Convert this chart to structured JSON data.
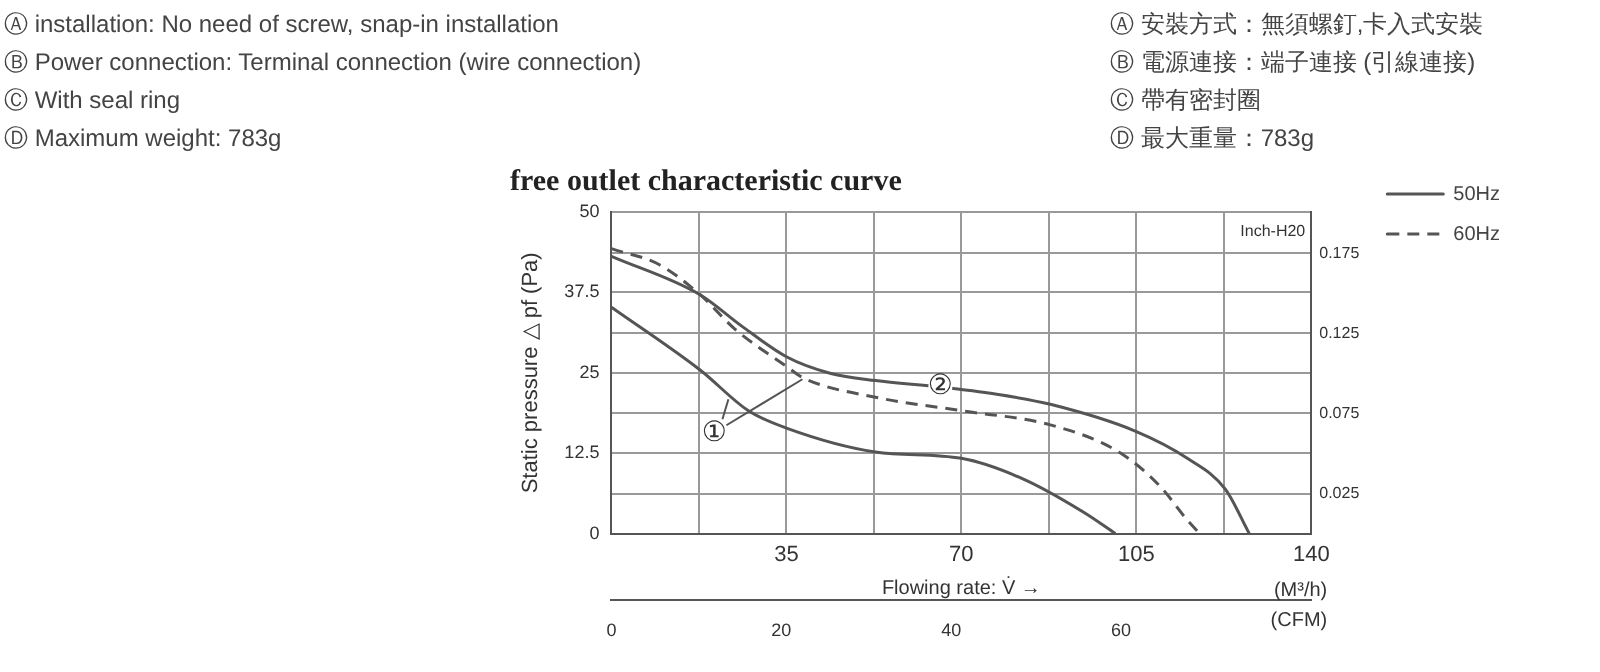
{
  "chart_data": {
    "type": "line",
    "title": "free outlet characteristic curve",
    "xlabel": "Flowing rate: V̇ →",
    "ylabel": "Static pressure △ pf (Pa)",
    "y2label": "Inch-H20",
    "x2label": "(CFM)",
    "x": [
      0,
      17.8,
      27.4,
      35,
      52.8,
      70,
      82.3,
      94.7,
      100.8
    ],
    "series": [
      {
        "name": "50Hz",
        "color": "#555555",
        "line_style": "solid",
        "values": [
          35.2,
          25.4,
          19.1,
          16.4,
          12.7,
          11.7,
          8.5,
          3.2,
          0
        ]
      },
      {
        "name": "60Hz",
        "color": "#555555",
        "line_style": "dashed",
        "x": [
          0,
          9.6,
          17.8,
          24.7,
          35,
          38.4,
          52.8,
          70,
          87.8,
          101.5,
          109.7,
          115.2,
          117.7
        ],
        "values": [
          44.3,
          41.8,
          37.1,
          31.8,
          26,
          24.2,
          21.2,
          19.1,
          16.9,
          12.7,
          7.4,
          2.1,
          0
        ]
      },
      {
        "color": "#555555",
        "line_style": "solid",
        "x": [
          0,
          17.8,
          26,
          35,
          43.9,
          52.8,
          65.8,
          76.8,
          87.8,
          104.9,
          115.2,
          122.8,
          127.6
        ],
        "values": [
          43.1,
          37.1,
          32.3,
          27.5,
          24.9,
          23.8,
          22.8,
          21.7,
          20.1,
          15.9,
          11.7,
          6.9,
          0
        ]
      }
    ],
    "xlim": [
      0,
      140
    ],
    "xticks": [
      {
        "value": 0,
        "label": null
      },
      {
        "value": 17.5,
        "label": null
      },
      35,
      {
        "value": 52.5,
        "label": null
      },
      70,
      {
        "value": 87.5,
        "label": null
      },
      105,
      {
        "value": 122.5,
        "label": null
      },
      140
    ],
    "ylim": [
      0,
      50
    ],
    "yticks": [
      0,
      12.5,
      25,
      37.5,
      50
    ],
    "y2lim": [
      0,
      0.2007
    ],
    "y2ticks": [
      0.025,
      0.075,
      0.125,
      0.175
    ],
    "x2lim": [
      0,
      82.4
    ],
    "x2ticks": [
      0,
      20,
      40,
      60
    ],
    "grid": true,
    "legend": "right",
    "marker": "none",
    "annotations": [
      "Ⓐ installation: No need of screw, snap-in installation",
      "Ⓑ Power connection: Terminal connection (wire connection)",
      "Ⓒ With seal ring",
      "Ⓓ Maximum weight:  783g",
      "Ⓐ 安裝方式：無須螺釘,卡入式安裝",
      "Ⓑ 電源連接：端子連接 (引線連接)",
      "Ⓒ 帶有密封圈",
      "Ⓓ 最大重量：783g",
      "(M³/h)",
      {
        "text": "①",
        "x": 20.6,
        "y": 15.6
      },
      {
        "text": "②",
        "x": 65.8,
        "y": 22.8
      }
    ]
  }
}
